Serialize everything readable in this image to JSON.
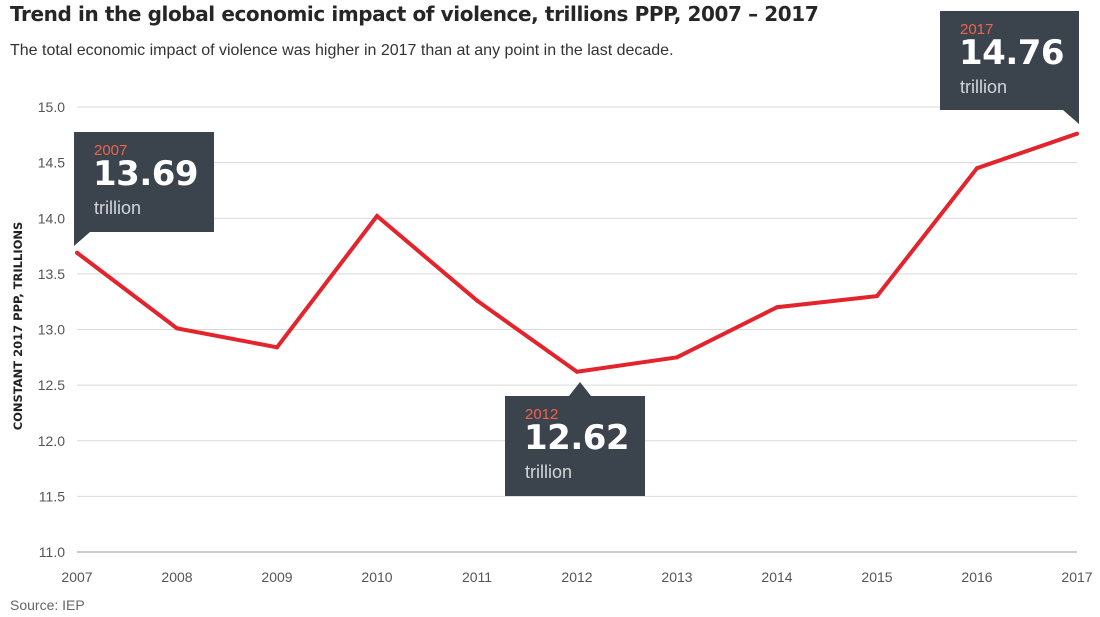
{
  "title": "Trend in the global economic impact of violence, trillions PPP, 2007 – 2017",
  "subtitle": "The total economic impact of violence was higher in 2017 than at any point in the last decade.",
  "source": "Source: IEP",
  "colors": {
    "line": "#e4242c",
    "grid": "#d9d9d9",
    "callout_bg": "#3b444d",
    "callout_year": "#f0634e"
  },
  "callouts": [
    {
      "year": "2007",
      "value": "13.69",
      "unit": "trillion"
    },
    {
      "year": "2012",
      "value": "12.62",
      "unit": "trillion"
    },
    {
      "year": "2017",
      "value": "14.76",
      "unit": "trillion"
    }
  ],
  "chart_data": {
    "type": "line",
    "title": "Trend in the global economic impact of violence, trillions PPP, 2007 – 2017",
    "subtitle": "The total economic impact of violence was higher in 2017 than at any point in the last decade.",
    "xlabel": "",
    "ylabel": "CONSTANT 2017 PPP, TRILLIONS",
    "x": [
      "2007",
      "2008",
      "2009",
      "2010",
      "2011",
      "2012",
      "2013",
      "2014",
      "2015",
      "2016",
      "2017"
    ],
    "series": [
      {
        "values": [
          13.69,
          13.01,
          12.84,
          14.02,
          13.26,
          12.62,
          12.75,
          13.2,
          13.3,
          14.45,
          14.76
        ]
      }
    ],
    "yticks": [
      "11.0",
      "11.5",
      "12.0",
      "12.5",
      "13.0",
      "13.5",
      "14.0",
      "14.5",
      "15.0"
    ],
    "ylim": [
      11.0,
      15.0
    ],
    "grid": true,
    "legend": "none"
  }
}
